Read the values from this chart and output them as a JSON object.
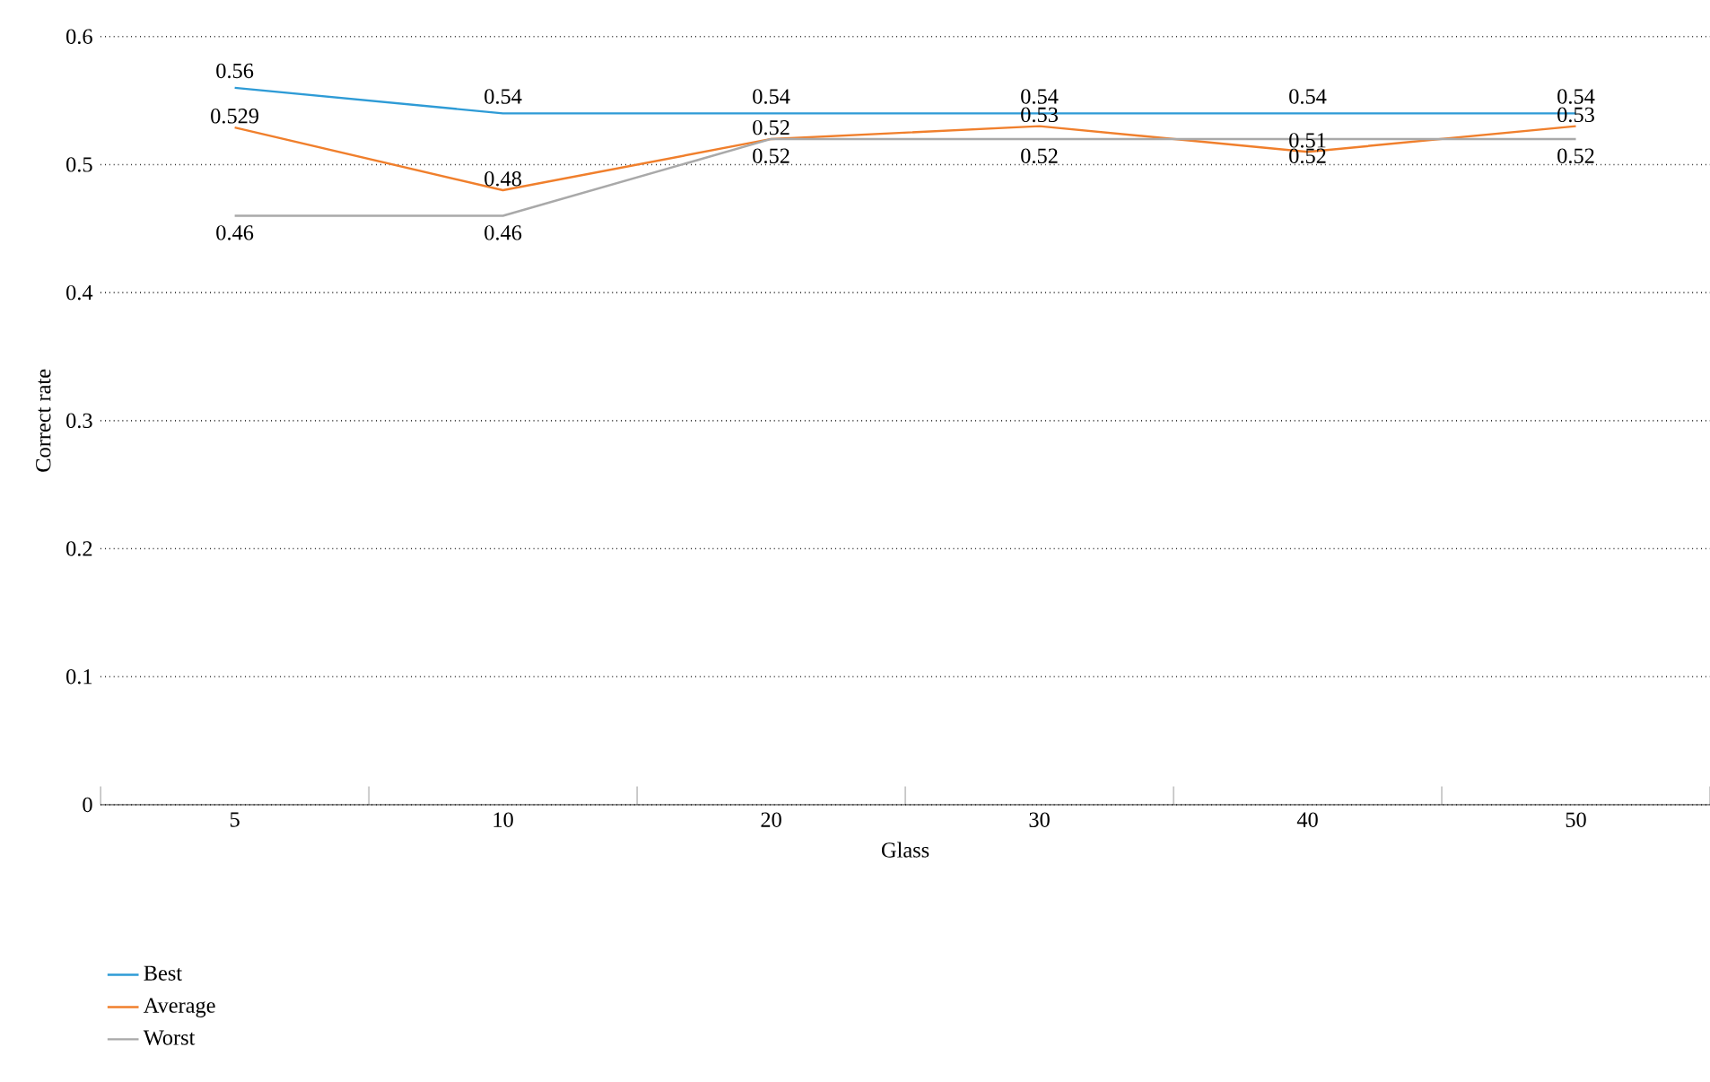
{
  "chart_data": {
    "type": "line",
    "xlabel": "Glass",
    "ylabel": "Correct rate",
    "categories": [
      "5",
      "10",
      "20",
      "30",
      "40",
      "50"
    ],
    "series": [
      {
        "name": "Best",
        "color": "#2e9bd6",
        "values": [
          0.56,
          0.54,
          0.54,
          0.54,
          0.54,
          0.54
        ]
      },
      {
        "name": "Average",
        "color": "#f07f2c",
        "values": [
          0.529,
          0.48,
          0.52,
          0.53,
          0.51,
          0.53
        ]
      },
      {
        "name": "Worst",
        "color": "#a9a9a9",
        "values": [
          0.46,
          0.46,
          0.52,
          0.52,
          0.52,
          0.52
        ]
      }
    ],
    "ylim": [
      0,
      0.6
    ],
    "yticks": [
      0,
      0.1,
      0.2,
      0.3,
      0.4,
      0.5,
      0.6
    ],
    "grid": "y",
    "legend": "bottom left",
    "data_labels": true,
    "marker": "none",
    "line_style": "solid"
  }
}
